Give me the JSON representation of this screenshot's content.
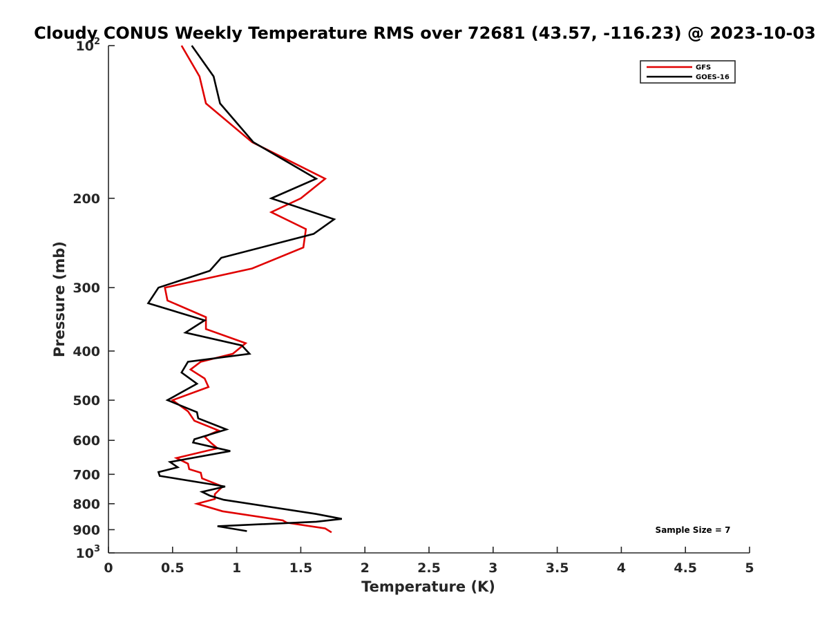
{
  "chart_data": {
    "type": "line",
    "title": "Cloudy CONUS Weekly Temperature RMS over 72681 (43.57, -116.23) @ 2023-10-03",
    "xlabel": "Temperature (K)",
    "ylabel": "Pressure (mb)",
    "xlim": [
      0,
      5
    ],
    "ylim": [
      100,
      1000
    ],
    "y_scale": "log",
    "y_reversed": true,
    "grid": false,
    "legend_position": "top-right",
    "x_ticks": [
      {
        "value": 0,
        "label": "0"
      },
      {
        "value": 0.5,
        "label": "0.5"
      },
      {
        "value": 1,
        "label": "1"
      },
      {
        "value": 1.5,
        "label": "1.5"
      },
      {
        "value": 2,
        "label": "2"
      },
      {
        "value": 2.5,
        "label": "2.5"
      },
      {
        "value": 3,
        "label": "3"
      },
      {
        "value": 3.5,
        "label": "3.5"
      },
      {
        "value": 4,
        "label": "4"
      },
      {
        "value": 4.5,
        "label": "4.5"
      },
      {
        "value": 5,
        "label": "5"
      }
    ],
    "y_ticks": [
      {
        "value": 100,
        "base": "10",
        "exp": "2"
      },
      {
        "value": 200,
        "label": "200"
      },
      {
        "value": 300,
        "label": "300"
      },
      {
        "value": 400,
        "label": "400"
      },
      {
        "value": 500,
        "label": "500"
      },
      {
        "value": 600,
        "label": "600"
      },
      {
        "value": 700,
        "label": "700"
      },
      {
        "value": 800,
        "label": "800"
      },
      {
        "value": 900,
        "label": "900"
      },
      {
        "value": 1000,
        "base": "10",
        "exp": "3"
      }
    ],
    "series": [
      {
        "name": "GFS",
        "color": "#e00000",
        "points": [
          [
            0.57,
            100
          ],
          [
            0.71,
            115
          ],
          [
            0.76,
            130
          ],
          [
            1.12,
            155
          ],
          [
            1.69,
            183
          ],
          [
            1.5,
            200
          ],
          [
            1.27,
            213
          ],
          [
            1.54,
            230
          ],
          [
            1.52,
            250
          ],
          [
            1.12,
            275
          ],
          [
            0.44,
            300
          ],
          [
            0.46,
            318
          ],
          [
            0.76,
            343
          ],
          [
            0.76,
            362
          ],
          [
            1.07,
            386
          ],
          [
            0.97,
            405
          ],
          [
            0.72,
            420
          ],
          [
            0.64,
            435
          ],
          [
            0.75,
            453
          ],
          [
            0.78,
            471
          ],
          [
            0.5,
            500
          ],
          [
            0.62,
            526
          ],
          [
            0.67,
            549
          ],
          [
            0.86,
            574
          ],
          [
            0.75,
            590
          ],
          [
            0.8,
            607
          ],
          [
            0.85,
            622
          ],
          [
            0.53,
            650
          ],
          [
            0.62,
            667
          ],
          [
            0.63,
            684
          ],
          [
            0.72,
            695
          ],
          [
            0.73,
            713
          ],
          [
            0.89,
            740
          ],
          [
            0.83,
            766
          ],
          [
            0.83,
            783
          ],
          [
            0.69,
            800
          ],
          [
            0.89,
            828
          ],
          [
            1.36,
            863
          ],
          [
            1.39,
            872
          ],
          [
            1.69,
            895
          ],
          [
            1.74,
            911
          ]
        ]
      },
      {
        "name": "GOES-16",
        "color": "#000000",
        "points": [
          [
            0.65,
            100
          ],
          [
            0.82,
            115
          ],
          [
            0.87,
            130
          ],
          [
            1.13,
            155
          ],
          [
            1.62,
            183
          ],
          [
            1.27,
            200
          ],
          [
            1.76,
            220
          ],
          [
            1.6,
            235
          ],
          [
            0.88,
            262
          ],
          [
            0.79,
            278
          ],
          [
            0.39,
            300
          ],
          [
            0.31,
            322
          ],
          [
            0.75,
            348
          ],
          [
            0.6,
            368
          ],
          [
            1.04,
            390
          ],
          [
            1.1,
            405
          ],
          [
            0.62,
            420
          ],
          [
            0.57,
            441
          ],
          [
            0.69,
            464
          ],
          [
            0.46,
            500
          ],
          [
            0.69,
            528
          ],
          [
            0.7,
            543
          ],
          [
            0.92,
            571
          ],
          [
            0.67,
            597
          ],
          [
            0.66,
            606
          ],
          [
            0.95,
            630
          ],
          [
            0.48,
            662
          ],
          [
            0.54,
            678
          ],
          [
            0.39,
            693
          ],
          [
            0.4,
            705
          ],
          [
            0.91,
            740
          ],
          [
            0.73,
            758
          ],
          [
            0.79,
            771
          ],
          [
            0.9,
            786
          ],
          [
            1.62,
            838
          ],
          [
            1.82,
            857
          ],
          [
            1.62,
            868
          ],
          [
            0.85,
            886
          ],
          [
            1.08,
            906
          ]
        ]
      }
    ],
    "annotation": "Sample Size = 7"
  }
}
